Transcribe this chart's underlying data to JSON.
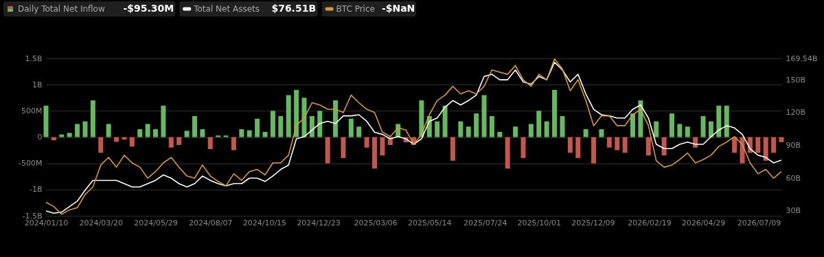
{
  "chart_data": {
    "type": "bar",
    "x": [
      "2024-01-10",
      "2024-01-20",
      "2024-01-30",
      "2024-02-09",
      "2024-02-19",
      "2024-02-29",
      "2024-03-10",
      "2024-03-20",
      "2024-03-30",
      "2024-04-09",
      "2024-04-19",
      "2024-04-29",
      "2024-05-09",
      "2024-05-19",
      "2024-05-29",
      "2024-06-08",
      "2024-06-18",
      "2024-06-28",
      "2024-07-08",
      "2024-07-18",
      "2024-07-28",
      "2024-08-07",
      "2024-08-17",
      "2024-08-27",
      "2024-09-06",
      "2024-09-16",
      "2024-09-26",
      "2024-10-06",
      "2024-10-16",
      "2024-10-26",
      "2024-11-05",
      "2024-11-15",
      "2024-11-25",
      "2024-12-05",
      "2024-12-15",
      "2024-12-25",
      "2025-01-04",
      "2025-01-14",
      "2025-01-24",
      "2025-02-03",
      "2025-02-13",
      "2025-02-23",
      "2025-03-05",
      "2025-03-15",
      "2025-03-25",
      "2025-04-04",
      "2025-04-14",
      "2025-04-24",
      "2025-05-04",
      "2025-05-14",
      "2025-05-24",
      "2025-06-03",
      "2025-06-13",
      "2025-06-23",
      "2025-07-03",
      "2025-07-13",
      "2025-07-23",
      "2025-08-02",
      "2025-08-12",
      "2025-08-22",
      "2025-09-01",
      "2025-09-11",
      "2025-09-21",
      "2025-10-01",
      "2025-10-11",
      "2025-10-21",
      "2025-10-31",
      "2025-11-10",
      "2025-11-20",
      "2025-11-30",
      "2025-12-10",
      "2025-12-20",
      "2025-12-30",
      "2026-01-09",
      "2026-01-19",
      "2026-01-29",
      "2026-02-08",
      "2026-02-18",
      "2026-02-28",
      "2026-03-10",
      "2026-03-20",
      "2026-03-30",
      "2026-04-09",
      "2026-04-19",
      "2026-04-29",
      "2026-05-09",
      "2026-05-19",
      "2026-05-29",
      "2026-06-08",
      "2026-06-18",
      "2026-06-28",
      "2026-07-08",
      "2026-07-18",
      "2026-07-28",
      "2026-08-07"
    ],
    "series": [
      {
        "name": "Daily Total Net Inflow",
        "values": [
          600000000,
          -60000000,
          50000000,
          80000000,
          250000000,
          300000000,
          700000000,
          -300000000,
          250000000,
          -90000000,
          -50000000,
          -180000000,
          150000000,
          250000000,
          150000000,
          600000000,
          -200000000,
          -150000000,
          120000000,
          400000000,
          150000000,
          -230000000,
          30000000,
          30000000,
          -250000000,
          150000000,
          130000000,
          350000000,
          100000000,
          500000000,
          400000000,
          800000000,
          900000000,
          750000000,
          400000000,
          500000000,
          -500000000,
          700000000,
          -400000000,
          350000000,
          200000000,
          -200000000,
          -600000000,
          -350000000,
          -150000000,
          250000000,
          -100000000,
          -150000000,
          700000000,
          400000000,
          300000000,
          600000000,
          -450000000,
          300000000,
          200000000,
          450000000,
          800000000,
          400000000,
          100000000,
          -600000000,
          200000000,
          -400000000,
          250000000,
          500000000,
          300000000,
          900000000,
          400000000,
          -300000000,
          -400000000,
          150000000,
          -500000000,
          150000000,
          -200000000,
          -250000000,
          -300000000,
          450000000,
          700000000,
          -350000000,
          300000000,
          -350000000,
          450000000,
          250000000,
          200000000,
          -200000000,
          400000000,
          300000000,
          600000000,
          600000000,
          -300000000,
          -500000000,
          -300000000,
          -300000000,
          -450000000,
          -300000000,
          -95300000
        ],
        "colors": [
          "#67b95f",
          "#c4574c",
          "#67b95f",
          "#67b95f",
          "#67b95f",
          "#67b95f",
          "#67b95f",
          "#c4574c",
          "#67b95f",
          "#c4574c",
          "#c4574c",
          "#c4574c",
          "#67b95f",
          "#67b95f",
          "#67b95f",
          "#67b95f",
          "#c4574c",
          "#c4574c",
          "#67b95f",
          "#67b95f",
          "#67b95f",
          "#c4574c",
          "#67b95f",
          "#67b95f",
          "#c4574c",
          "#67b95f",
          "#67b95f",
          "#67b95f",
          "#67b95f",
          "#67b95f",
          "#67b95f",
          "#67b95f",
          "#67b95f",
          "#67b95f",
          "#67b95f",
          "#67b95f",
          "#c4574c",
          "#67b95f",
          "#c4574c",
          "#67b95f",
          "#67b95f",
          "#c4574c",
          "#c4574c",
          "#c4574c",
          "#c4574c",
          "#67b95f",
          "#c4574c",
          "#c4574c",
          "#67b95f",
          "#67b95f",
          "#67b95f",
          "#67b95f",
          "#c4574c",
          "#67b95f",
          "#67b95f",
          "#67b95f",
          "#67b95f",
          "#67b95f",
          "#67b95f",
          "#c4574c",
          "#67b95f",
          "#c4574c",
          "#67b95f",
          "#67b95f",
          "#67b95f",
          "#67b95f",
          "#67b95f",
          "#c4574c",
          "#c4574c",
          "#67b95f",
          "#c4574c",
          "#67b95f",
          "#c4574c",
          "#c4574c",
          "#c4574c",
          "#67b95f",
          "#67b95f",
          "#c4574c",
          "#67b95f",
          "#c4574c",
          "#67b95f",
          "#67b95f",
          "#67b95f",
          "#c4574c",
          "#67b95f",
          "#67b95f",
          "#67b95f",
          "#67b95f",
          "#c4574c",
          "#c4574c",
          "#c4574c",
          "#c4574c",
          "#c4574c",
          "#c4574c",
          "#c4574c"
        ]
      },
      {
        "name": "Total Net Assets",
        "type": "line",
        "axis": "y2",
        "color": "#ffffff",
        "values": [
          30,
          28,
          29,
          34,
          39,
          49,
          58,
          58,
          58,
          58,
          55,
          52,
          52,
          55,
          58,
          63,
          60,
          55,
          52,
          55,
          62,
          58,
          55,
          53,
          55,
          55,
          60,
          60,
          57,
          62,
          68,
          72,
          96,
          98,
          104,
          110,
          112,
          110,
          117,
          117,
          118,
          112,
          102,
          100,
          96,
          98,
          96,
          91,
          96,
          112,
          115,
          125,
          131,
          127,
          131,
          136,
          153,
          155,
          150,
          150,
          159,
          148,
          146,
          153,
          150,
          166,
          159,
          148,
          155,
          137,
          123,
          118,
          117,
          115,
          115,
          123,
          127,
          115,
          91,
          87,
          87,
          91,
          93,
          91,
          91,
          98,
          104,
          108,
          106,
          100,
          87,
          81,
          79,
          74,
          76.51
        ]
      },
      {
        "name": "BTC Price",
        "type": "line",
        "axis": "y2",
        "color": "#d39a3a",
        "values": [
          38,
          34,
          27,
          31,
          33,
          45,
          52,
          72,
          79,
          70,
          81,
          74,
          70,
          60,
          66,
          74,
          79,
          70,
          62,
          60,
          72,
          62,
          57,
          53,
          64,
          58,
          66,
          68,
          63,
          74,
          74,
          81,
          108,
          115,
          129,
          127,
          123,
          123,
          120,
          136,
          129,
          123,
          120,
          102,
          98,
          106,
          104,
          91,
          100,
          118,
          131,
          136,
          144,
          137,
          140,
          137,
          144,
          159,
          157,
          155,
          163,
          150,
          144,
          155,
          150,
          169,
          160,
          140,
          150,
          131,
          108,
          117,
          117,
          108,
          108,
          118,
          123,
          108,
          76,
          70,
          72,
          77,
          83,
          74,
          77,
          81,
          89,
          93,
          98,
          91,
          74,
          64,
          68,
          60,
          66
        ]
      }
    ],
    "annotations": [
      "-$95.30M",
      "$76.51B",
      "-$NaN"
    ],
    "xlim": [
      "2024-01-10",
      "2026-08-07"
    ],
    "xticks": [
      {
        "value": "2024-01-10",
        "label": "2024/01/10"
      },
      {
        "value": "2024-03-20",
        "label": "2024/03/20"
      },
      {
        "value": "2024-05-29",
        "label": "2024/05/29"
      },
      {
        "value": "2024-08-07",
        "label": "2024/08/07"
      },
      {
        "value": "2024-10-15",
        "label": "2024/10/15"
      },
      {
        "value": "2024-12-23",
        "label": "2024/12/23"
      },
      {
        "value": "2025-03-06",
        "label": "2025/03/06"
      },
      {
        "value": "2025-05-14",
        "label": "2025/05/14"
      },
      {
        "value": "2025-07-24",
        "label": "2025/07/24"
      },
      {
        "value": "2025-10-01",
        "label": "2025/10/01"
      },
      {
        "value": "2025-12-09",
        "label": "2025/12/09"
      },
      {
        "value": "2026-02-19",
        "label": "2026/02/19"
      },
      {
        "value": "2026-04-29",
        "label": "2026/04/29"
      },
      {
        "value": "2026-07-09",
        "label": "2026/07/09"
      }
    ],
    "ylim": [
      -1500000000,
      1500000000
    ],
    "yticks": [
      {
        "value": -1500000000,
        "label": "-1.5B"
      },
      {
        "value": -1000000000,
        "label": "-1B"
      },
      {
        "value": -500000000,
        "label": "-500M"
      },
      0,
      {
        "value": 500000000,
        "label": "500M"
      },
      {
        "value": 1000000000,
        "label": "1B"
      },
      {
        "value": 1500000000,
        "label": "1.5B"
      }
    ],
    "y2label": null,
    "y2lim": [
      25.6,
      169.54
    ],
    "y2ticks": [
      {
        "value": 30,
        "label": "30B"
      },
      {
        "value": 60,
        "label": "60B"
      },
      {
        "value": 90,
        "label": "90B"
      },
      {
        "value": 120,
        "label": "120B"
      },
      {
        "value": 150,
        "label": "150B"
      },
      {
        "value": 169.54,
        "label": "169.54B"
      }
    ],
    "grid": "y",
    "legend": "top left"
  }
}
